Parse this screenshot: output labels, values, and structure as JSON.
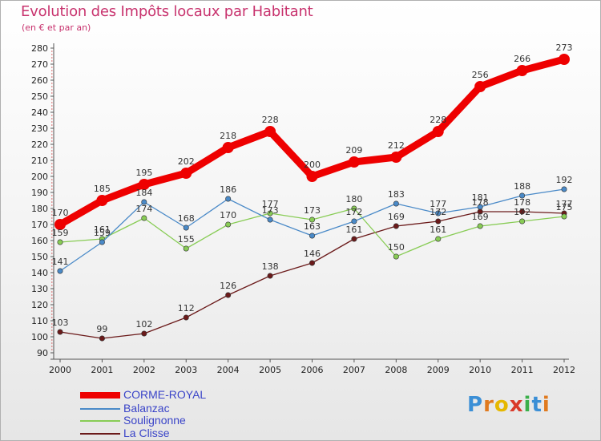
{
  "header": {
    "title": "Evolution des Impôts locaux par Habitant",
    "subtitle": "(en € et par an)"
  },
  "chart_data": {
    "type": "line",
    "title": "Evolution des Impôts locaux par Habitant",
    "subtitle": "(en € et par an)",
    "xlabel": "",
    "ylabel": "",
    "ylim": [
      90,
      280
    ],
    "yticks": [
      90,
      100,
      110,
      120,
      130,
      140,
      150,
      160,
      170,
      180,
      190,
      200,
      210,
      220,
      230,
      240,
      250,
      260,
      270,
      280
    ],
    "categories": [
      "2000",
      "2001",
      "2002",
      "2003",
      "2004",
      "2005",
      "2006",
      "2007",
      "2008",
      "2009",
      "2010",
      "2011",
      "2012"
    ],
    "grid": false,
    "legend_position": "bottom-left",
    "series": [
      {
        "name": "CORME-ROYAL",
        "color": "#ee0000",
        "values": [
          170,
          185,
          195,
          202,
          218,
          228,
          200,
          209,
          212,
          228,
          256,
          266,
          273
        ]
      },
      {
        "name": "Balanzac",
        "color": "#4a8ac8",
        "values": [
          141,
          159,
          184,
          168,
          186,
          173,
          163,
          172,
          183,
          177,
          181,
          188,
          192
        ]
      },
      {
        "name": "Soulignonne",
        "color": "#88cc55",
        "values": [
          159,
          161,
          174,
          155,
          170,
          177,
          173,
          180,
          150,
          161,
          169,
          172,
          175
        ]
      },
      {
        "name": "La Clisse",
        "color": "#6b1a1a",
        "values": [
          103,
          99,
          102,
          112,
          126,
          138,
          146,
          161,
          169,
          172,
          178,
          178,
          177
        ]
      }
    ]
  },
  "logo": {
    "letters": [
      "P",
      "r",
      "o",
      "x",
      "i",
      "t",
      "i"
    ],
    "colors": [
      "#3b8fd6",
      "#e07a1f",
      "#e6b800",
      "#d93a2a",
      "#3bb04a",
      "#3b8fd6",
      "#e07a1f"
    ]
  }
}
